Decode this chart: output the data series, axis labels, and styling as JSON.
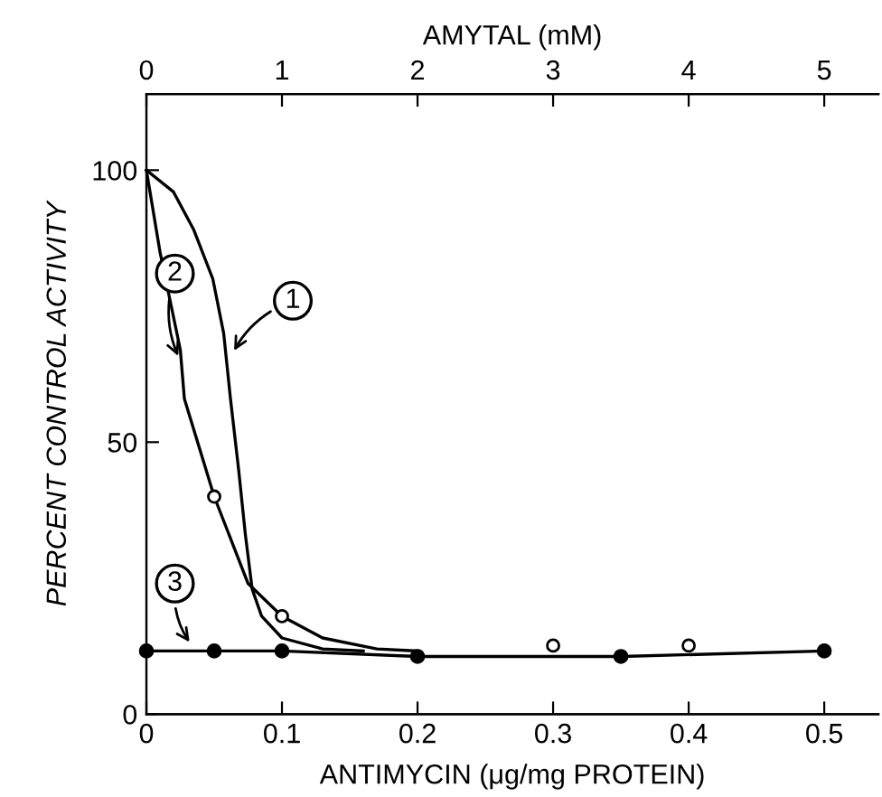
{
  "chart_data": {
    "type": "line",
    "xlabel": "ANTIMYCIN (μg/mg PROTEIN)",
    "x2label": "AMYTAL (mM)",
    "ylabel": "PERCENT CONTROL ACTIVITY",
    "xlim": [
      0,
      0.54
    ],
    "xticks": [
      0,
      0.1,
      0.2,
      0.3,
      0.4,
      0.5
    ],
    "x2lim": [
      0,
      5.4
    ],
    "x2ticks": [
      0,
      1,
      2,
      3,
      4,
      5
    ],
    "ylim": [
      0,
      114
    ],
    "yticks": [
      0,
      50,
      100
    ],
    "grid": false,
    "legend": false,
    "series": [
      {
        "name": "1",
        "color": "#000000",
        "marker": "none",
        "x": [
          0,
          0.02,
          0.035,
          0.049,
          0.057,
          0.062,
          0.068,
          0.073,
          0.078,
          0.085,
          0.1,
          0.13,
          0.16
        ],
        "values": [
          100,
          96,
          89,
          80,
          70,
          58,
          45,
          33,
          23,
          18,
          14,
          12,
          11.6
        ]
      },
      {
        "name": "2",
        "color": "#000000",
        "marker": "none",
        "x": [
          0,
          0.01,
          0.025,
          0.028,
          0.05,
          0.075,
          0.1,
          0.13,
          0.17,
          0.2
        ],
        "values": [
          100,
          85,
          67,
          58,
          40,
          24,
          18,
          14,
          12,
          11.6
        ]
      },
      {
        "type": "scatter",
        "color": "#000000",
        "marker": "circle",
        "x": [
          0.05,
          0.1,
          0.3,
          0.4
        ],
        "values": [
          40,
          18,
          12.6,
          12.6
        ]
      },
      {
        "name": "3",
        "color": "#000000",
        "marker": "circle",
        "x": [
          0,
          0.05,
          0.1,
          0.2,
          0.35,
          0.5
        ],
        "values": [
          11.6,
          11.6,
          11.6,
          10.6,
          10.6,
          11.6
        ]
      }
    ]
  }
}
